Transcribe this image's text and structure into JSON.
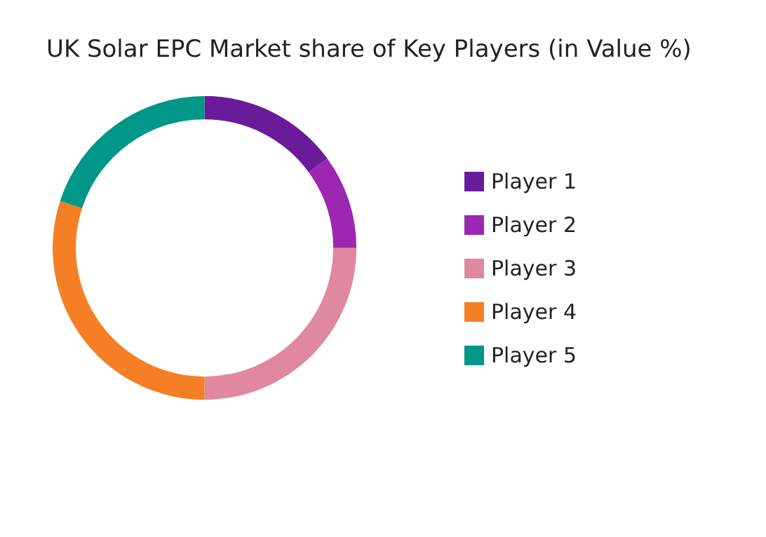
{
  "chart_data": {
    "type": "donut",
    "title": "UK Solar EPC Market share of Key Players (in Value %)",
    "categories": [
      "Player 1",
      "Player 2",
      "Player 3",
      "Player 4",
      "Player 5"
    ],
    "values": [
      15,
      10,
      25,
      30,
      20
    ],
    "colors": [
      "#6a1b9a",
      "#9c27b0",
      "#e088a0",
      "#f57f25",
      "#009688"
    ],
    "legend": "right"
  }
}
